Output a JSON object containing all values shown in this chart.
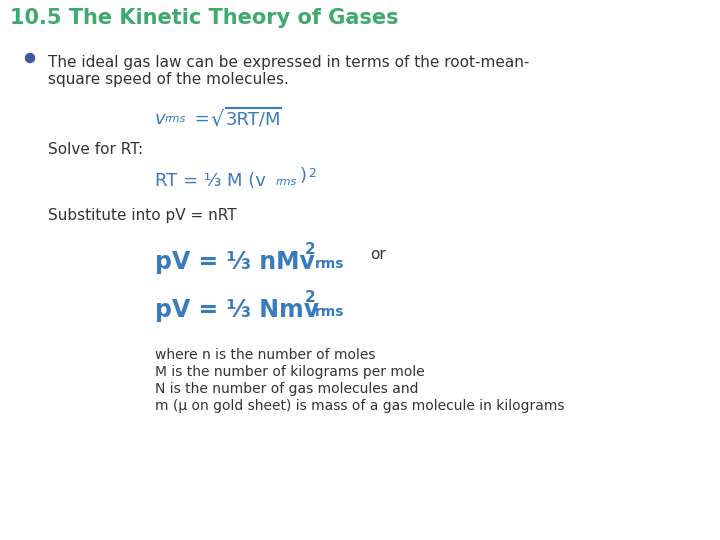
{
  "title": "10.5 The Kinetic Theory of Gases",
  "title_color": "#3daa6e",
  "background_color": "#ffffff",
  "bullet_color": "#3a5ba0",
  "dark_text": "#333333",
  "teal_color": "#3a7abf",
  "note_lines": [
    "where n is the number of moles",
    "M is the number of kilograms per mole",
    "N is the number of gas molecules and",
    "m (μ on gold sheet) is mass of a gas molecule in kilograms"
  ]
}
